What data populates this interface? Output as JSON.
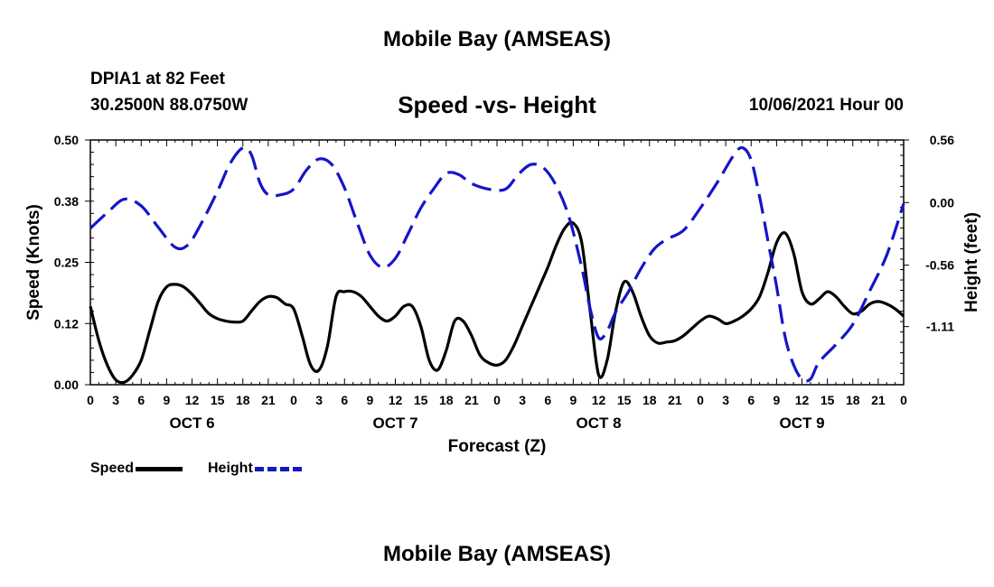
{
  "header": {
    "main_title": "Mobile Bay (AMSEAS)",
    "station_name": "DPIA1 at 82 Feet",
    "station_coords": "30.2500N  88.0750W",
    "chart_title": "Speed -vs- Height",
    "run_time": "10/06/2021 Hour 00"
  },
  "footer": {
    "title": "Mobile Bay (AMSEAS)"
  },
  "legend": {
    "speed_label": "Speed",
    "height_label": "Height"
  },
  "colors": {
    "speed": "#000000",
    "height": "#1515c8"
  },
  "chart_data": {
    "type": "line",
    "title": "Speed -vs- Height",
    "xlabel": "Forecast (Z)",
    "ylabel": "Speed (Knots)",
    "y2label": "Height (feet)",
    "xlim": [
      0,
      96
    ],
    "ylim": [
      0,
      0.5
    ],
    "y2lim": [
      -1.63,
      0.56
    ],
    "yticks": [
      "0.50",
      "0.38",
      "0.25",
      "0.12",
      "0.00"
    ],
    "yticks_values": [
      0.5,
      0.375,
      0.25,
      0.125,
      0.0
    ],
    "y2ticks": [
      "0.56",
      "0.00",
      "-0.56",
      "-1.11"
    ],
    "y2ticks_values": [
      0.56,
      0.0,
      -0.56,
      -1.11
    ],
    "xticks": [
      "0",
      "3",
      "6",
      "9",
      "12",
      "15",
      "18",
      "21",
      "0",
      "3",
      "6",
      "9",
      "12",
      "15",
      "18",
      "21",
      "0",
      "3",
      "6",
      "9",
      "12",
      "15",
      "18",
      "21",
      "0",
      "3",
      "6",
      "9",
      "12",
      "15",
      "18",
      "21",
      "0"
    ],
    "day_labels": [
      {
        "label": "OCT 6",
        "hour": 12
      },
      {
        "label": "OCT 7",
        "hour": 36
      },
      {
        "label": "OCT 8",
        "hour": 60
      },
      {
        "label": "OCT 9",
        "hour": 84
      }
    ],
    "series": [
      {
        "name": "Speed",
        "axis": "left",
        "points": [
          [
            0,
            0.16
          ],
          [
            1,
            0.09
          ],
          [
            2,
            0.04
          ],
          [
            3,
            0.01
          ],
          [
            4,
            0.005
          ],
          [
            5,
            0.02
          ],
          [
            6,
            0.05
          ],
          [
            7,
            0.11
          ],
          [
            8,
            0.17
          ],
          [
            9,
            0.2
          ],
          [
            10,
            0.205
          ],
          [
            11,
            0.2
          ],
          [
            12,
            0.185
          ],
          [
            13,
            0.165
          ],
          [
            14,
            0.145
          ],
          [
            15,
            0.135
          ],
          [
            16,
            0.13
          ],
          [
            17,
            0.128
          ],
          [
            18,
            0.13
          ],
          [
            19,
            0.15
          ],
          [
            20,
            0.17
          ],
          [
            21,
            0.18
          ],
          [
            22,
            0.178
          ],
          [
            23,
            0.165
          ],
          [
            24,
            0.155
          ],
          [
            25,
            0.1
          ],
          [
            26,
            0.04
          ],
          [
            27,
            0.03
          ],
          [
            28,
            0.08
          ],
          [
            29,
            0.18
          ],
          [
            30,
            0.19
          ],
          [
            31,
            0.19
          ],
          [
            32,
            0.18
          ],
          [
            33,
            0.16
          ],
          [
            34,
            0.14
          ],
          [
            35,
            0.13
          ],
          [
            36,
            0.14
          ],
          [
            37,
            0.16
          ],
          [
            38,
            0.16
          ],
          [
            39,
            0.12
          ],
          [
            40,
            0.05
          ],
          [
            41,
            0.03
          ],
          [
            42,
            0.07
          ],
          [
            43,
            0.13
          ],
          [
            44,
            0.13
          ],
          [
            45,
            0.1
          ],
          [
            46,
            0.06
          ],
          [
            47,
            0.045
          ],
          [
            48,
            0.04
          ],
          [
            49,
            0.05
          ],
          [
            50,
            0.08
          ],
          [
            51,
            0.12
          ],
          [
            52,
            0.16
          ],
          [
            53,
            0.2
          ],
          [
            54,
            0.24
          ],
          [
            55,
            0.285
          ],
          [
            56,
            0.32
          ],
          [
            57,
            0.33
          ],
          [
            58,
            0.29
          ],
          [
            59,
            0.15
          ],
          [
            60,
            0.02
          ],
          [
            61,
            0.05
          ],
          [
            62,
            0.15
          ],
          [
            63,
            0.21
          ],
          [
            64,
            0.19
          ],
          [
            65,
            0.14
          ],
          [
            66,
            0.1
          ],
          [
            67,
            0.085
          ],
          [
            68,
            0.087
          ],
          [
            69,
            0.09
          ],
          [
            70,
            0.1
          ],
          [
            71,
            0.115
          ],
          [
            72,
            0.13
          ],
          [
            73,
            0.14
          ],
          [
            74,
            0.135
          ],
          [
            75,
            0.125
          ],
          [
            76,
            0.13
          ],
          [
            77,
            0.14
          ],
          [
            78,
            0.155
          ],
          [
            79,
            0.18
          ],
          [
            80,
            0.23
          ],
          [
            81,
            0.29
          ],
          [
            82,
            0.31
          ],
          [
            83,
            0.27
          ],
          [
            84,
            0.19
          ],
          [
            85,
            0.165
          ],
          [
            86,
            0.175
          ],
          [
            87,
            0.19
          ],
          [
            88,
            0.18
          ],
          [
            89,
            0.16
          ],
          [
            90,
            0.145
          ],
          [
            91,
            0.15
          ],
          [
            92,
            0.165
          ],
          [
            93,
            0.17
          ],
          [
            94,
            0.165
          ],
          [
            95,
            0.155
          ],
          [
            96,
            0.14
          ]
        ]
      },
      {
        "name": "Height",
        "axis": "right",
        "points": [
          [
            0,
            -0.23
          ],
          [
            2,
            -0.09
          ],
          [
            4,
            0.03
          ],
          [
            6,
            -0.03
          ],
          [
            8,
            -0.22
          ],
          [
            10,
            -0.4
          ],
          [
            11.5,
            -0.38
          ],
          [
            13,
            -0.2
          ],
          [
            15,
            0.1
          ],
          [
            16.5,
            0.35
          ],
          [
            18,
            0.49
          ],
          [
            19,
            0.43
          ],
          [
            20,
            0.18
          ],
          [
            21,
            0.07
          ],
          [
            22.5,
            0.07
          ],
          [
            24,
            0.12
          ],
          [
            25.5,
            0.29
          ],
          [
            27,
            0.39
          ],
          [
            28.5,
            0.34
          ],
          [
            30,
            0.13
          ],
          [
            31.5,
            -0.18
          ],
          [
            33,
            -0.47
          ],
          [
            34.5,
            -0.58
          ],
          [
            36,
            -0.5
          ],
          [
            37.5,
            -0.28
          ],
          [
            39,
            -0.05
          ],
          [
            40.5,
            0.12
          ],
          [
            42,
            0.26
          ],
          [
            43.5,
            0.25
          ],
          [
            45,
            0.17
          ],
          [
            47,
            0.12
          ],
          [
            49,
            0.12
          ],
          [
            50.5,
            0.25
          ],
          [
            52,
            0.34
          ],
          [
            53.5,
            0.31
          ],
          [
            55,
            0.15
          ],
          [
            56.5,
            -0.13
          ],
          [
            58,
            -0.58
          ],
          [
            59,
            -0.95
          ],
          [
            60,
            -1.21
          ],
          [
            61,
            -1.15
          ],
          [
            62,
            -0.98
          ],
          [
            63.5,
            -0.8
          ],
          [
            65,
            -0.59
          ],
          [
            66.5,
            -0.42
          ],
          [
            68,
            -0.33
          ],
          [
            70,
            -0.25
          ],
          [
            72,
            -0.05
          ],
          [
            74,
            0.18
          ],
          [
            76,
            0.43
          ],
          [
            77,
            0.49
          ],
          [
            78,
            0.38
          ],
          [
            79,
            0.05
          ],
          [
            80,
            -0.35
          ],
          [
            81,
            -0.75
          ],
          [
            82,
            -1.2
          ],
          [
            83,
            -1.45
          ],
          [
            84,
            -1.58
          ],
          [
            85,
            -1.58
          ],
          [
            86,
            -1.43
          ],
          [
            88,
            -1.27
          ],
          [
            90,
            -1.09
          ],
          [
            92,
            -0.79
          ],
          [
            94,
            -0.47
          ],
          [
            96,
            -0.01
          ]
        ]
      }
    ]
  }
}
